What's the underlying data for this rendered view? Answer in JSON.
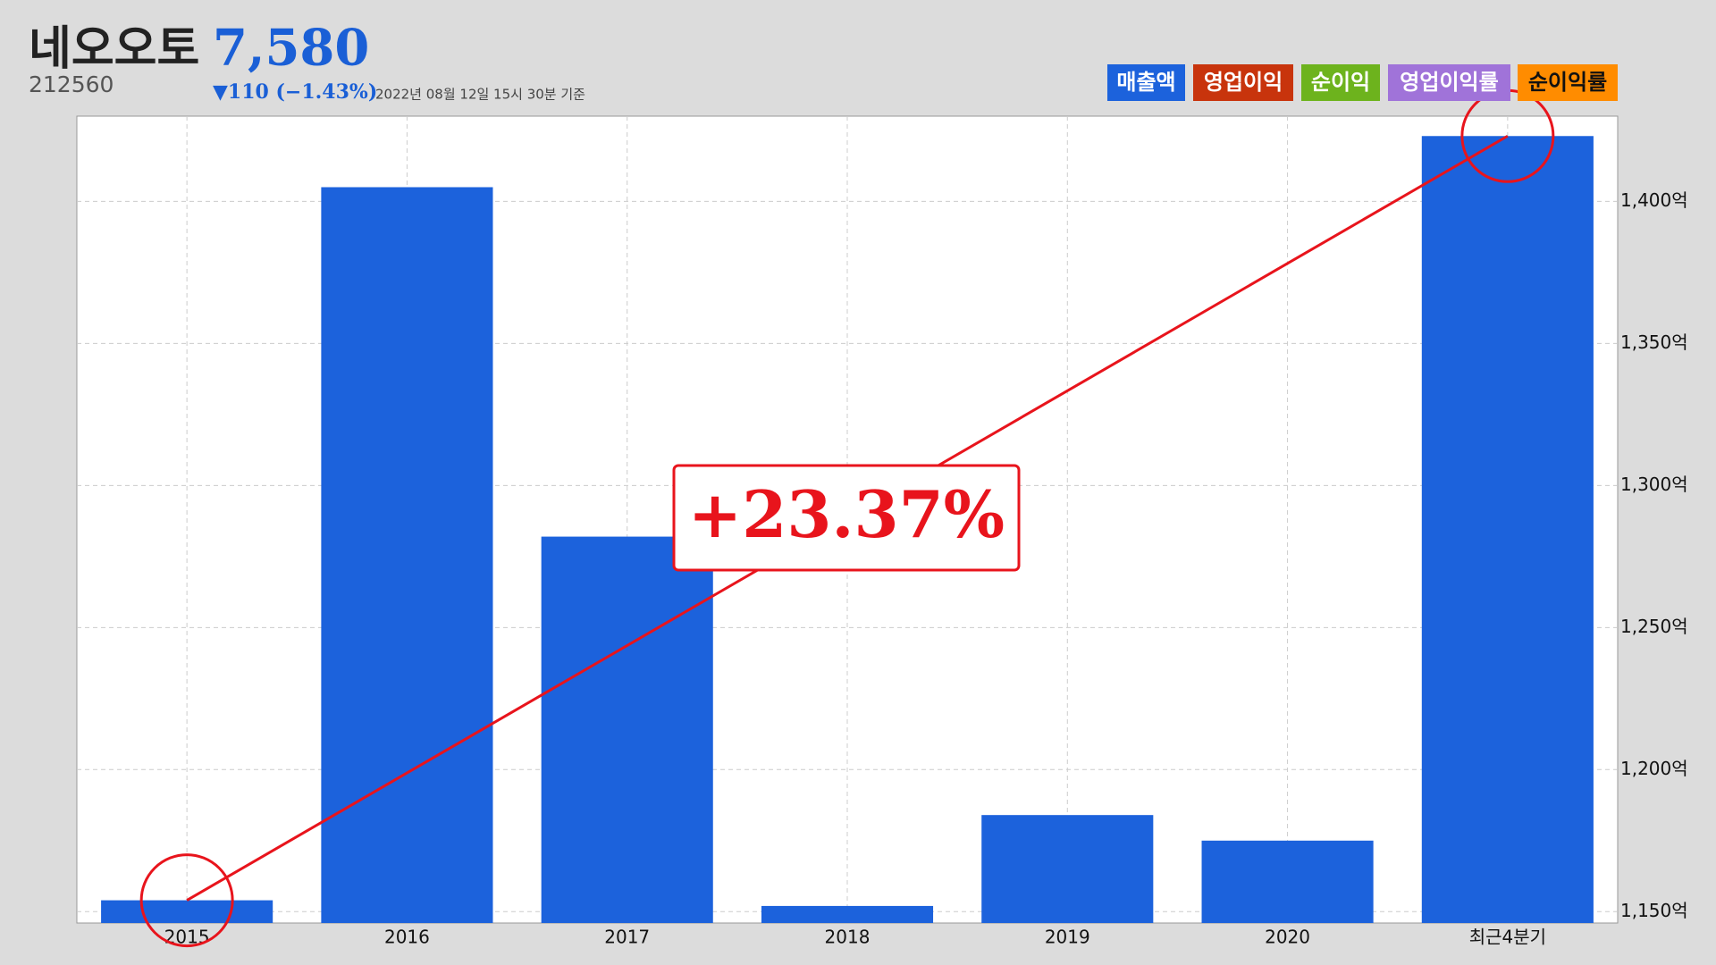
{
  "header": {
    "name": "네오오토",
    "price": "7,580",
    "code": "212560",
    "change": "▼110 (−1.43%)",
    "timestamp": "2022년 08월 12일 15시 30분 기준"
  },
  "toggles": [
    {
      "name": "영업이익",
      "color": "#c8340c"
    },
    {
      "name": "순이익",
      "color": "#6db31d"
    },
    {
      "name": "영업이익률",
      "color": "#a073d9"
    },
    {
      "name": "순이익률",
      "color": "#ff8c00"
    }
  ],
  "chart_data": {
    "type": "bar",
    "categories": [
      "2015",
      "2016",
      "2017",
      "2018",
      "2019",
      "2020",
      "최근4분기"
    ],
    "series": [
      {
        "name": "매출액",
        "color": "#1c62dc",
        "values": [
          1154,
          1405,
          1282,
          1152,
          1184,
          1175,
          1423
        ]
      }
    ],
    "ylim": [
      1146,
      1430
    ],
    "yticks": [
      {
        "value": 1150,
        "label": "1,150억"
      },
      {
        "value": 1200,
        "label": "1,200억"
      },
      {
        "value": 1250,
        "label": "1,250억"
      },
      {
        "value": 1300,
        "label": "1,300억"
      },
      {
        "value": 1350,
        "label": "1,350억"
      },
      {
        "value": 1400,
        "label": "1,400억"
      }
    ],
    "grid": true,
    "annotation": "+23.37%"
  }
}
